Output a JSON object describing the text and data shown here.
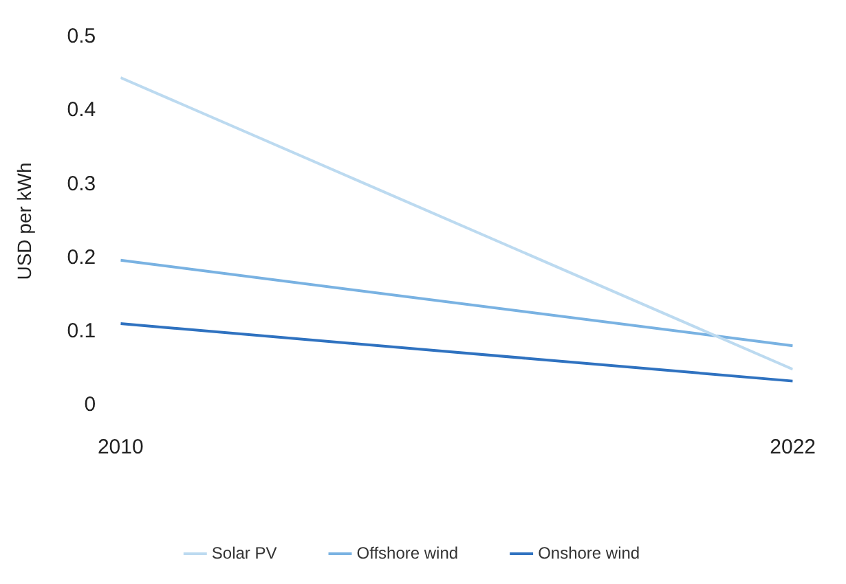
{
  "chart_data": {
    "type": "line",
    "ylabel": "USD per kWh",
    "x": [
      2010,
      2022
    ],
    "xlim": [
      2010,
      2022
    ],
    "xticks": [
      2010,
      2022
    ],
    "ylim": [
      0,
      0.5
    ],
    "yticks": [
      0,
      0.1,
      0.2,
      0.3,
      0.4,
      0.5
    ],
    "grid": false,
    "legend": "bottom",
    "marker": "none",
    "line_style": "solid",
    "series": [
      {
        "name": "Solar PV",
        "color": "#bcdaf0",
        "values": [
          0.445,
          0.049
        ]
      },
      {
        "name": "Offshore wind",
        "color": "#79b2e2",
        "values": [
          0.197,
          0.081
        ]
      },
      {
        "name": "Onshore wind",
        "color": "#2f72c0",
        "values": [
          0.111,
          0.033
        ]
      }
    ]
  }
}
